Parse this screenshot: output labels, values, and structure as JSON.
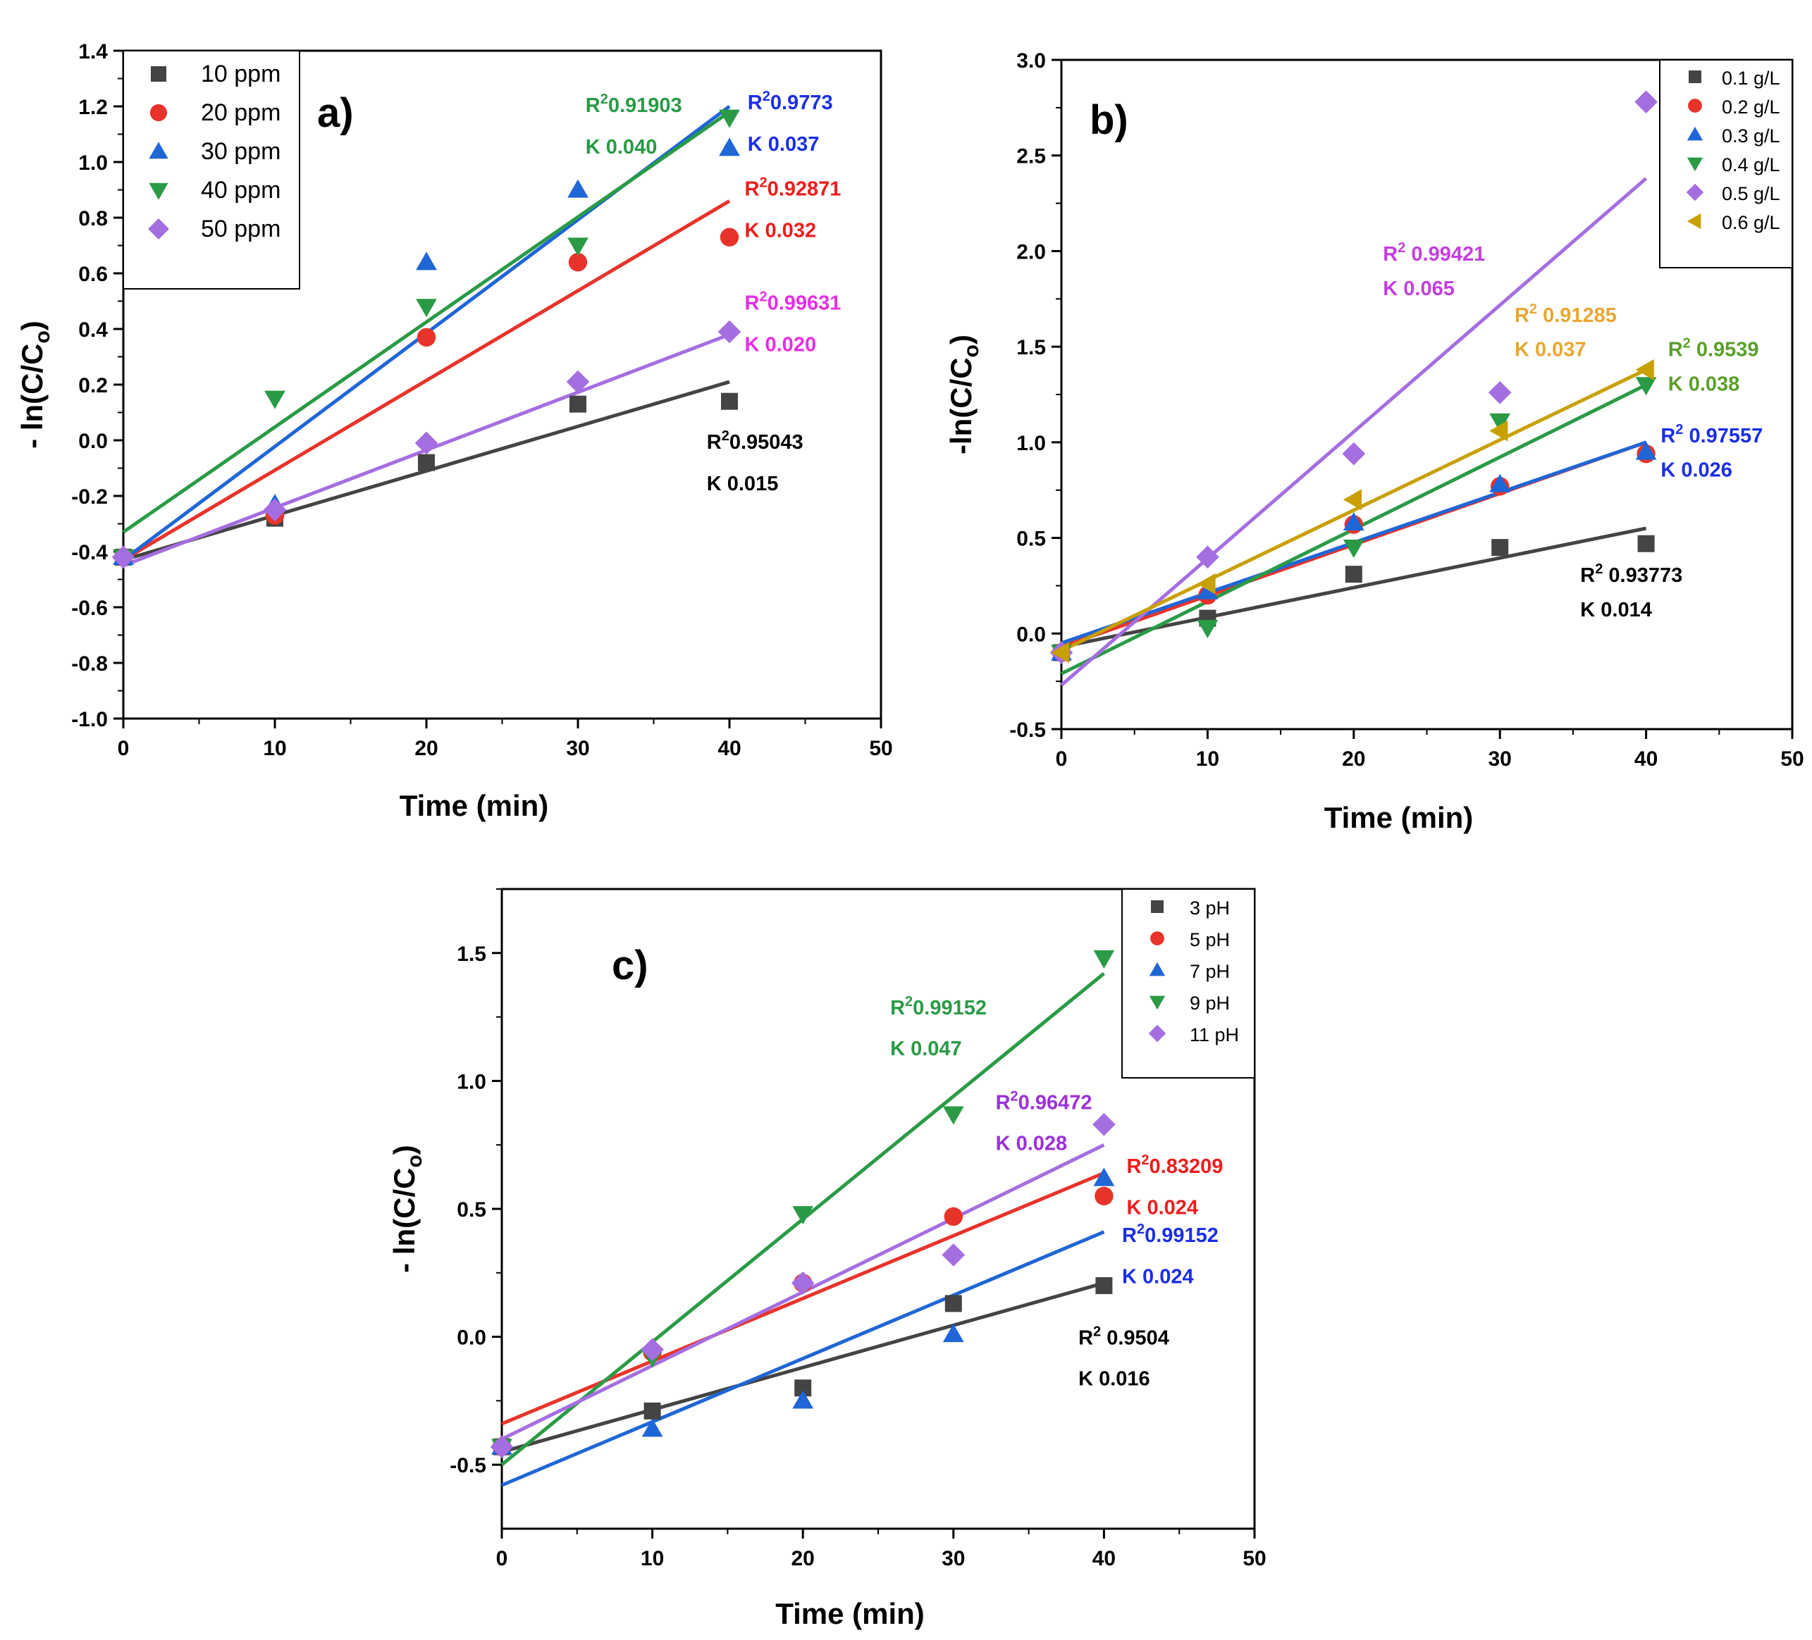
{
  "chart_data": [
    {
      "type": "scatter",
      "panel_label": "a)",
      "xlabel": "Time (min)",
      "ylabel": "- ln(C/Co)",
      "xlim": [
        0,
        50
      ],
      "ylim": [
        -1.0,
        1.4
      ],
      "xticks": [
        "0",
        "10",
        "20",
        "30",
        "40",
        "50"
      ],
      "yticks": [
        "-1.0",
        "-0.8",
        "-0.6",
        "-0.4",
        "-0.2",
        "0.0",
        "0.2",
        "0.4",
        "0.6",
        "0.8",
        "1.0",
        "1.2",
        "1.4"
      ],
      "legend_position": "top-left",
      "x": [
        0,
        10,
        20,
        30,
        40
      ],
      "series": [
        {
          "name": "10 ppm",
          "marker": "square",
          "color": "#444444",
          "values": [
            -0.42,
            -0.28,
            -0.08,
            0.13,
            0.14
          ],
          "fit": [
            -0.43,
            0.21
          ]
        },
        {
          "name": "20 ppm",
          "marker": "circle",
          "color": "#e8332a",
          "values": [
            -0.42,
            -0.27,
            0.37,
            0.64,
            0.73
          ],
          "fit": [
            -0.43,
            0.86
          ]
        },
        {
          "name": "30 ppm",
          "marker": "triangle-up",
          "color": "#1f66d6",
          "values": [
            -0.42,
            -0.23,
            0.64,
            0.9,
            1.05
          ],
          "fit": [
            -0.43,
            1.2
          ]
        },
        {
          "name": "40 ppm",
          "marker": "triangle-down",
          "color": "#2a9a46",
          "values": [
            -0.42,
            0.15,
            0.48,
            0.7,
            1.16
          ],
          "fit": [
            -0.33,
            1.18
          ]
        },
        {
          "name": "50 ppm",
          "marker": "diamond",
          "color": "#a56ee0",
          "values": [
            -0.42,
            -0.25,
            -0.01,
            0.21,
            0.39
          ],
          "fit": [
            -0.45,
            0.38
          ]
        }
      ],
      "annotations": [
        {
          "r2": "0.91903",
          "r2_spaced": false,
          "k": "K 0.040",
          "color": "#2a9a46",
          "x": 30.5,
          "y": 1.18,
          "y2": 1.03
        },
        {
          "r2": "0.9773",
          "r2_spaced": false,
          "k": "K 0.037",
          "color": "#1a2ee8",
          "x": 41.2,
          "y": 1.19,
          "y2": 1.04
        },
        {
          "r2": "0.92871",
          "r2_spaced": false,
          "k": "K 0.032",
          "color": "#ee1c1c",
          "x": 41.0,
          "y": 0.88,
          "y2": 0.73
        },
        {
          "r2": "0.99631",
          "r2_spaced": false,
          "k": "K 0.020",
          "color": "#e62ee6",
          "x": 41.0,
          "y": 0.47,
          "y2": 0.32
        },
        {
          "r2": "0.95043",
          "r2_spaced": false,
          "k": "K 0.015",
          "color": "#000000",
          "x": 38.5,
          "y": -0.03,
          "y2": -0.18
        }
      ]
    },
    {
      "type": "scatter",
      "panel_label": "b)",
      "xlabel": "Time (min)",
      "ylabel": "-ln(C/Co)",
      "xlim": [
        0,
        50
      ],
      "ylim": [
        -0.5,
        3.0
      ],
      "xticks": [
        "0",
        "10",
        "20",
        "30",
        "40",
        "50"
      ],
      "yticks": [
        "-0.5",
        "0.0",
        "0.5",
        "1.0",
        "1.5",
        "2.0",
        "2.5",
        "3.0"
      ],
      "legend_position": "top-right",
      "x": [
        0,
        10,
        20,
        30,
        40
      ],
      "series": [
        {
          "name": "0.1 g/L",
          "marker": "square",
          "color": "#444444",
          "values": [
            -0.1,
            0.08,
            0.31,
            0.45,
            0.47
          ],
          "fit": [
            -0.07,
            0.55
          ]
        },
        {
          "name": "0.2 g/L",
          "marker": "circle",
          "color": "#e8332a",
          "values": [
            -0.1,
            0.2,
            0.57,
            0.77,
            0.94
          ],
          "fit": [
            -0.07,
            1.0
          ]
        },
        {
          "name": "0.3 g/L",
          "marker": "triangle-up",
          "color": "#1f66d6",
          "values": [
            -0.1,
            0.22,
            0.58,
            0.78,
            0.95
          ],
          "fit": [
            -0.05,
            1.0
          ]
        },
        {
          "name": "0.4 g/L",
          "marker": "triangle-down",
          "color": "#2a9a46",
          "values": [
            -0.1,
            0.03,
            0.45,
            1.11,
            1.3
          ],
          "fit": [
            -0.21,
            1.3
          ]
        },
        {
          "name": "0.5 g/L",
          "marker": "diamond",
          "color": "#a56ee0",
          "values": [
            -0.1,
            0.4,
            0.94,
            1.26,
            2.78
          ],
          "fit": [
            -0.27,
            2.38
          ]
        },
        {
          "name": "0.6 g/L",
          "marker": "triangle-left",
          "color": "#c8a000",
          "values": [
            -0.1,
            0.26,
            0.7,
            1.06,
            1.38
          ],
          "fit": [
            -0.09,
            1.38
          ]
        }
      ],
      "annotations": [
        {
          "r2": "0.99421",
          "r2_spaced": true,
          "k": "K  0.065",
          "color": "#c33ee0",
          "x": 22.0,
          "y": 1.95,
          "y2": 1.77
        },
        {
          "r2": "0.91285",
          "r2_spaced": true,
          "k": "K  0.037",
          "color": "#e8a732",
          "x": 31.0,
          "y": 1.63,
          "y2": 1.45
        },
        {
          "r2": "0.9539",
          "r2_spaced": true,
          "k": "K  0.038",
          "color": "#5aa02c",
          "x": 41.5,
          "y": 1.45,
          "y2": 1.27
        },
        {
          "r2": "0.97557",
          "r2_spaced": true,
          "k": "K  0.026",
          "color": "#1a2ee8",
          "x": 41.0,
          "y": 1.0,
          "y2": 0.82
        },
        {
          "r2": "0.93773",
          "r2_spaced": true,
          "k": "K  0.014",
          "color": "#000000",
          "x": 35.5,
          "y": 0.27,
          "y2": 0.09
        }
      ]
    },
    {
      "type": "scatter",
      "panel_label": "c)",
      "xlabel": "Time (min)",
      "ylabel": "- ln(C/Co)",
      "xlim": [
        0,
        50
      ],
      "ylim": [
        -0.75,
        1.75
      ],
      "xticks": [
        "0",
        "10",
        "20",
        "30",
        "40",
        "50"
      ],
      "yticks": [
        "-0.5",
        "0.0",
        "0.5",
        "1.0",
        "1.5"
      ],
      "ytick_values": [
        -0.5,
        0.0,
        0.5,
        1.0,
        1.5
      ],
      "legend_position": "top-right",
      "x": [
        0,
        10,
        20,
        30,
        40
      ],
      "series": [
        {
          "name": "3 pH",
          "marker": "square",
          "color": "#444444",
          "values": [
            -0.43,
            -0.29,
            -0.2,
            0.13,
            0.2
          ],
          "fit": [
            -0.45,
            0.21
          ]
        },
        {
          "name": "5 pH",
          "marker": "circle",
          "color": "#e8332a",
          "values": [
            -0.43,
            -0.06,
            0.21,
            0.47,
            0.55
          ],
          "fit": [
            -0.34,
            0.64
          ]
        },
        {
          "name": "7 pH",
          "marker": "triangle-up",
          "color": "#1f66d6",
          "values": [
            -0.43,
            -0.36,
            -0.25,
            0.01,
            0.62
          ],
          "fit": [
            -0.58,
            0.41
          ]
        },
        {
          "name": "9 pH",
          "marker": "triangle-down",
          "color": "#2a9a46",
          "values": [
            -0.43,
            -0.08,
            0.48,
            0.87,
            1.48
          ],
          "fit": [
            -0.5,
            1.42
          ]
        },
        {
          "name": "11 pH",
          "marker": "diamond",
          "color": "#a56ee0",
          "values": [
            -0.43,
            -0.05,
            0.21,
            0.32,
            0.83
          ],
          "fit": [
            -0.4,
            0.75
          ]
        }
      ],
      "annotations": [
        {
          "r2": "0.99152",
          "r2_spaced": false,
          "k": "K 0.047",
          "color": "#2a9a46",
          "x": 25.8,
          "y": 1.26,
          "y2": 1.1
        },
        {
          "r2": "0.96472",
          "r2_spaced": false,
          "k": "K 0.028",
          "color": "#9b30d9",
          "x": 32.8,
          "y": 0.89,
          "y2": 0.73
        },
        {
          "r2": "0.83209",
          "r2_spaced": false,
          "k": "K 0.024",
          "color": "#ee1c1c",
          "x": 41.5,
          "y": 0.64,
          "y2": 0.48
        },
        {
          "r2": "0.99152",
          "r2_spaced": false,
          "k": "K 0.024",
          "color": "#1a2ee8",
          "x": 41.2,
          "y": 0.37,
          "y2": 0.21
        },
        {
          "r2": "0.9504",
          "r2_spaced": true,
          "k": "K 0.016",
          "color": "#000000",
          "x": 38.3,
          "y": -0.03,
          "y2": -0.19
        }
      ]
    }
  ]
}
